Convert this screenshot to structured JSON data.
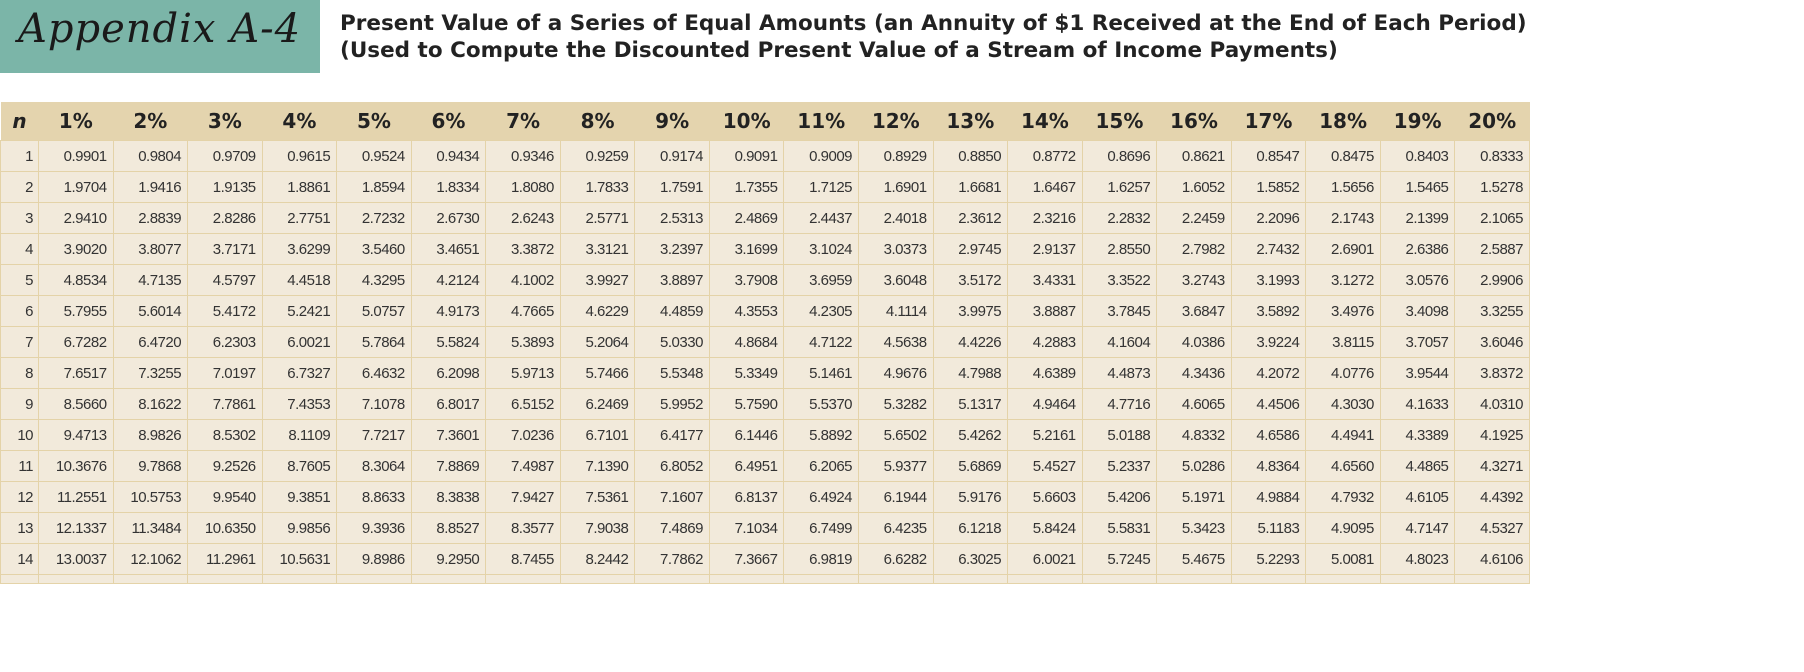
{
  "header": {
    "appendix_label": "Appendix A-4",
    "title_line1": "Present Value of a Series of Equal Amounts (an Annuity of $1 Received at the End of Each Period)",
    "title_line2": "(Used to Compute the Discounted Present Value of a Stream of Income Payments)"
  },
  "colors": {
    "appendix_tag": "#7bb5a8",
    "header_row": "#e4d4ae",
    "cell": "#f2eadb",
    "grid": "#e4d3a8"
  },
  "table": {
    "columns": [
      "n",
      "1%",
      "2%",
      "3%",
      "4%",
      "5%",
      "6%",
      "7%",
      "8%",
      "9%",
      "10%",
      "11%",
      "12%",
      "13%",
      "14%",
      "15%",
      "16%",
      "17%",
      "18%",
      "19%",
      "20%"
    ],
    "rows": [
      [
        "1",
        "0.9901",
        "0.9804",
        "0.9709",
        "0.9615",
        "0.9524",
        "0.9434",
        "0.9346",
        "0.9259",
        "0.9174",
        "0.9091",
        "0.9009",
        "0.8929",
        "0.8850",
        "0.8772",
        "0.8696",
        "0.8621",
        "0.8547",
        "0.8475",
        "0.8403",
        "0.8333"
      ],
      [
        "2",
        "1.9704",
        "1.9416",
        "1.9135",
        "1.8861",
        "1.8594",
        "1.8334",
        "1.8080",
        "1.7833",
        "1.7591",
        "1.7355",
        "1.7125",
        "1.6901",
        "1.6681",
        "1.6467",
        "1.6257",
        "1.6052",
        "1.5852",
        "1.5656",
        "1.5465",
        "1.5278"
      ],
      [
        "3",
        "2.9410",
        "2.8839",
        "2.8286",
        "2.7751",
        "2.7232",
        "2.6730",
        "2.6243",
        "2.5771",
        "2.5313",
        "2.4869",
        "2.4437",
        "2.4018",
        "2.3612",
        "2.3216",
        "2.2832",
        "2.2459",
        "2.2096",
        "2.1743",
        "2.1399",
        "2.1065"
      ],
      [
        "4",
        "3.9020",
        "3.8077",
        "3.7171",
        "3.6299",
        "3.5460",
        "3.4651",
        "3.3872",
        "3.3121",
        "3.2397",
        "3.1699",
        "3.1024",
        "3.0373",
        "2.9745",
        "2.9137",
        "2.8550",
        "2.7982",
        "2.7432",
        "2.6901",
        "2.6386",
        "2.5887"
      ],
      [
        "5",
        "4.8534",
        "4.7135",
        "4.5797",
        "4.4518",
        "4.3295",
        "4.2124",
        "4.1002",
        "3.9927",
        "3.8897",
        "3.7908",
        "3.6959",
        "3.6048",
        "3.5172",
        "3.4331",
        "3.3522",
        "3.2743",
        "3.1993",
        "3.1272",
        "3.0576",
        "2.9906"
      ],
      [
        "6",
        "5.7955",
        "5.6014",
        "5.4172",
        "5.2421",
        "5.0757",
        "4.9173",
        "4.7665",
        "4.6229",
        "4.4859",
        "4.3553",
        "4.2305",
        "4.1114",
        "3.9975",
        "3.8887",
        "3.7845",
        "3.6847",
        "3.5892",
        "3.4976",
        "3.4098",
        "3.3255"
      ],
      [
        "7",
        "6.7282",
        "6.4720",
        "6.2303",
        "6.0021",
        "5.7864",
        "5.5824",
        "5.3893",
        "5.2064",
        "5.0330",
        "4.8684",
        "4.7122",
        "4.5638",
        "4.4226",
        "4.2883",
        "4.1604",
        "4.0386",
        "3.9224",
        "3.8115",
        "3.7057",
        "3.6046"
      ],
      [
        "8",
        "7.6517",
        "7.3255",
        "7.0197",
        "6.7327",
        "6.4632",
        "6.2098",
        "5.9713",
        "5.7466",
        "5.5348",
        "5.3349",
        "5.1461",
        "4.9676",
        "4.7988",
        "4.6389",
        "4.4873",
        "4.3436",
        "4.2072",
        "4.0776",
        "3.9544",
        "3.8372"
      ],
      [
        "9",
        "8.5660",
        "8.1622",
        "7.7861",
        "7.4353",
        "7.1078",
        "6.8017",
        "6.5152",
        "6.2469",
        "5.9952",
        "5.7590",
        "5.5370",
        "5.3282",
        "5.1317",
        "4.9464",
        "4.7716",
        "4.6065",
        "4.4506",
        "4.3030",
        "4.1633",
        "4.0310"
      ],
      [
        "10",
        "9.4713",
        "8.9826",
        "8.5302",
        "8.1109",
        "7.7217",
        "7.3601",
        "7.0236",
        "6.7101",
        "6.4177",
        "6.1446",
        "5.8892",
        "5.6502",
        "5.4262",
        "5.2161",
        "5.0188",
        "4.8332",
        "4.6586",
        "4.4941",
        "4.3389",
        "4.1925"
      ],
      [
        "11",
        "10.3676",
        "9.7868",
        "9.2526",
        "8.7605",
        "8.3064",
        "7.8869",
        "7.4987",
        "7.1390",
        "6.8052",
        "6.4951",
        "6.2065",
        "5.9377",
        "5.6869",
        "5.4527",
        "5.2337",
        "5.0286",
        "4.8364",
        "4.6560",
        "4.4865",
        "4.3271"
      ],
      [
        "12",
        "11.2551",
        "10.5753",
        "9.9540",
        "9.3851",
        "8.8633",
        "8.3838",
        "7.9427",
        "7.5361",
        "7.1607",
        "6.8137",
        "6.4924",
        "6.1944",
        "5.9176",
        "5.6603",
        "5.4206",
        "5.1971",
        "4.9884",
        "4.7932",
        "4.6105",
        "4.4392"
      ],
      [
        "13",
        "12.1337",
        "11.3484",
        "10.6350",
        "9.9856",
        "9.3936",
        "8.8527",
        "8.3577",
        "7.9038",
        "7.4869",
        "7.1034",
        "6.7499",
        "6.4235",
        "6.1218",
        "5.8424",
        "5.5831",
        "5.3423",
        "5.1183",
        "4.9095",
        "4.7147",
        "4.5327"
      ],
      [
        "14",
        "13.0037",
        "12.1062",
        "11.2961",
        "10.5631",
        "9.8986",
        "9.2950",
        "8.7455",
        "8.2442",
        "7.7862",
        "7.3667",
        "6.9819",
        "6.6282",
        "6.3025",
        "6.0021",
        "5.7245",
        "5.4675",
        "5.2293",
        "5.0081",
        "4.8023",
        "4.6106"
      ]
    ]
  }
}
